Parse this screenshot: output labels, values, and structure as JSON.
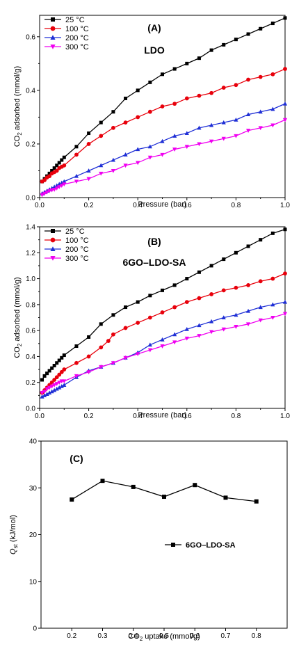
{
  "chart_data": [
    {
      "panel": "(A)",
      "title": "LDO",
      "type": "line",
      "xlabel": "Pressure (bar)",
      "ylabel": "CO2 adsorbed (mmol/g)",
      "xlim": [
        0,
        1.0
      ],
      "ylim": [
        0,
        0.68
      ],
      "xticks": [
        "0.0",
        "0.2",
        "0.4",
        "0.6",
        "0.8",
        "1.0"
      ],
      "yticks": [
        "0.0",
        "0.2",
        "0.4",
        "0.6"
      ],
      "xtick_values": [
        0,
        0.2,
        0.4,
        0.6,
        0.8,
        1.0
      ],
      "ytick_values": [
        0,
        0.2,
        0.4,
        0.6
      ],
      "legend": "top-left",
      "series": [
        {
          "name": "25 °C",
          "color": "#000000",
          "marker": "square",
          "x": [
            0.01,
            0.02,
            0.03,
            0.04,
            0.05,
            0.06,
            0.07,
            0.08,
            0.09,
            0.1,
            0.15,
            0.2,
            0.25,
            0.3,
            0.35,
            0.4,
            0.45,
            0.5,
            0.55,
            0.6,
            0.65,
            0.7,
            0.75,
            0.8,
            0.85,
            0.9,
            0.95,
            1.0
          ],
          "y": [
            0.06,
            0.07,
            0.08,
            0.09,
            0.1,
            0.11,
            0.12,
            0.13,
            0.14,
            0.15,
            0.19,
            0.24,
            0.28,
            0.32,
            0.37,
            0.4,
            0.43,
            0.46,
            0.48,
            0.5,
            0.52,
            0.55,
            0.57,
            0.59,
            0.61,
            0.63,
            0.65,
            0.67
          ]
        },
        {
          "name": "100 °C",
          "color": "#e8000b",
          "marker": "circle",
          "x": [
            0.01,
            0.02,
            0.03,
            0.04,
            0.05,
            0.06,
            0.07,
            0.08,
            0.09,
            0.1,
            0.15,
            0.2,
            0.25,
            0.3,
            0.35,
            0.4,
            0.45,
            0.5,
            0.55,
            0.6,
            0.65,
            0.7,
            0.75,
            0.8,
            0.85,
            0.9,
            0.95,
            1.0
          ],
          "y": [
            0.06,
            0.065,
            0.075,
            0.08,
            0.09,
            0.095,
            0.1,
            0.11,
            0.115,
            0.12,
            0.16,
            0.2,
            0.23,
            0.26,
            0.28,
            0.3,
            0.32,
            0.34,
            0.35,
            0.37,
            0.38,
            0.39,
            0.41,
            0.42,
            0.44,
            0.45,
            0.46,
            0.48
          ]
        },
        {
          "name": "200 °C",
          "color": "#1f2fd6",
          "marker": "triangle-up",
          "x": [
            0.01,
            0.02,
            0.03,
            0.04,
            0.05,
            0.06,
            0.07,
            0.08,
            0.09,
            0.1,
            0.15,
            0.2,
            0.25,
            0.3,
            0.35,
            0.4,
            0.45,
            0.5,
            0.55,
            0.6,
            0.65,
            0.7,
            0.75,
            0.8,
            0.85,
            0.9,
            0.95,
            1.0
          ],
          "y": [
            0.015,
            0.02,
            0.025,
            0.03,
            0.035,
            0.04,
            0.045,
            0.05,
            0.055,
            0.06,
            0.08,
            0.1,
            0.12,
            0.14,
            0.16,
            0.18,
            0.19,
            0.21,
            0.23,
            0.24,
            0.26,
            0.27,
            0.28,
            0.29,
            0.31,
            0.32,
            0.33,
            0.35
          ]
        },
        {
          "name": "300 °C",
          "color": "#f000f0",
          "marker": "triangle-down",
          "x": [
            0.01,
            0.02,
            0.03,
            0.04,
            0.05,
            0.06,
            0.07,
            0.08,
            0.09,
            0.1,
            0.15,
            0.2,
            0.25,
            0.3,
            0.35,
            0.4,
            0.45,
            0.5,
            0.55,
            0.6,
            0.65,
            0.7,
            0.75,
            0.8,
            0.85,
            0.9,
            0.95,
            1.0
          ],
          "y": [
            0.01,
            0.015,
            0.02,
            0.025,
            0.028,
            0.03,
            0.035,
            0.04,
            0.045,
            0.05,
            0.06,
            0.07,
            0.09,
            0.1,
            0.12,
            0.13,
            0.15,
            0.16,
            0.18,
            0.19,
            0.2,
            0.21,
            0.22,
            0.23,
            0.25,
            0.26,
            0.27,
            0.29
          ]
        }
      ]
    },
    {
      "panel": "(B)",
      "title": "6GO–LDO-SA",
      "type": "line",
      "xlabel": "Pressure (bar)",
      "ylabel": "CO2 adsorbed (mmol/g)",
      "xlim": [
        0,
        1.0
      ],
      "ylim": [
        0,
        1.4
      ],
      "xticks": [
        "0.0",
        "0.2",
        "0.4",
        "0.6",
        "0.8",
        "1.0"
      ],
      "yticks": [
        "0.0",
        "0.2",
        "0.4",
        "0.6",
        "0.8",
        "1.0",
        "1.2",
        "1.4"
      ],
      "xtick_values": [
        0,
        0.2,
        0.4,
        0.6,
        0.8,
        1.0
      ],
      "ytick_values": [
        0,
        0.2,
        0.4,
        0.6,
        0.8,
        1.0,
        1.2,
        1.4
      ],
      "legend": "top-left",
      "series": [
        {
          "name": "25 °C",
          "color": "#000000",
          "marker": "square",
          "x": [
            0.01,
            0.02,
            0.03,
            0.04,
            0.05,
            0.06,
            0.07,
            0.08,
            0.09,
            0.1,
            0.15,
            0.2,
            0.25,
            0.3,
            0.35,
            0.4,
            0.45,
            0.5,
            0.55,
            0.6,
            0.65,
            0.7,
            0.75,
            0.8,
            0.85,
            0.9,
            0.95,
            1.0
          ],
          "y": [
            0.22,
            0.25,
            0.27,
            0.29,
            0.31,
            0.33,
            0.35,
            0.37,
            0.39,
            0.41,
            0.48,
            0.55,
            0.65,
            0.72,
            0.78,
            0.82,
            0.87,
            0.91,
            0.95,
            1.0,
            1.05,
            1.1,
            1.15,
            1.2,
            1.25,
            1.3,
            1.35,
            1.38
          ]
        },
        {
          "name": "100 °C",
          "color": "#e8000b",
          "marker": "circle",
          "x": [
            0.01,
            0.02,
            0.03,
            0.04,
            0.05,
            0.06,
            0.07,
            0.08,
            0.09,
            0.1,
            0.15,
            0.2,
            0.25,
            0.28,
            0.3,
            0.35,
            0.4,
            0.45,
            0.5,
            0.55,
            0.6,
            0.65,
            0.7,
            0.75,
            0.8,
            0.85,
            0.9,
            0.95,
            1.0
          ],
          "y": [
            0.12,
            0.14,
            0.16,
            0.18,
            0.2,
            0.22,
            0.24,
            0.26,
            0.28,
            0.3,
            0.35,
            0.4,
            0.47,
            0.52,
            0.57,
            0.62,
            0.66,
            0.7,
            0.74,
            0.78,
            0.82,
            0.85,
            0.88,
            0.91,
            0.93,
            0.95,
            0.98,
            1.0,
            1.04
          ]
        },
        {
          "name": "200 °C",
          "color": "#1f2fd6",
          "marker": "triangle-up",
          "x": [
            0.01,
            0.02,
            0.03,
            0.04,
            0.05,
            0.06,
            0.07,
            0.08,
            0.09,
            0.1,
            0.15,
            0.2,
            0.25,
            0.3,
            0.35,
            0.4,
            0.45,
            0.5,
            0.55,
            0.6,
            0.65,
            0.7,
            0.75,
            0.8,
            0.85,
            0.9,
            0.95,
            1.0
          ],
          "y": [
            0.09,
            0.1,
            0.11,
            0.12,
            0.13,
            0.14,
            0.15,
            0.16,
            0.17,
            0.18,
            0.24,
            0.29,
            0.32,
            0.35,
            0.39,
            0.43,
            0.49,
            0.53,
            0.57,
            0.61,
            0.64,
            0.67,
            0.7,
            0.72,
            0.75,
            0.78,
            0.8,
            0.82
          ]
        },
        {
          "name": "300 °C",
          "color": "#f000f0",
          "marker": "triangle-down",
          "x": [
            0.01,
            0.02,
            0.03,
            0.04,
            0.05,
            0.06,
            0.07,
            0.08,
            0.09,
            0.1,
            0.15,
            0.2,
            0.25,
            0.3,
            0.35,
            0.4,
            0.45,
            0.5,
            0.55,
            0.6,
            0.65,
            0.7,
            0.75,
            0.8,
            0.85,
            0.9,
            0.95,
            1.0
          ],
          "y": [
            0.12,
            0.13,
            0.15,
            0.16,
            0.17,
            0.18,
            0.19,
            0.2,
            0.21,
            0.21,
            0.25,
            0.28,
            0.32,
            0.35,
            0.39,
            0.42,
            0.45,
            0.48,
            0.51,
            0.54,
            0.56,
            0.59,
            0.61,
            0.63,
            0.65,
            0.68,
            0.7,
            0.73
          ]
        }
      ]
    },
    {
      "panel": "(C)",
      "type": "line",
      "xlabel": "CO2 uptake (mmol/g)",
      "ylabel": "Qst (kJ/mol)",
      "xlim": [
        0.1,
        0.9
      ],
      "ylim": [
        0,
        40
      ],
      "xticks": [
        "0.2",
        "0.3",
        "0.4",
        "0.5",
        "0.6",
        "0.7",
        "0.8"
      ],
      "yticks": [
        "0",
        "10",
        "20",
        "30",
        "40"
      ],
      "xtick_values": [
        0.2,
        0.3,
        0.4,
        0.5,
        0.6,
        0.7,
        0.8
      ],
      "ytick_values": [
        0,
        10,
        20,
        30,
        40
      ],
      "legend": "center-right",
      "series": [
        {
          "name": "6GO–LDO-SA",
          "color": "#000000",
          "marker": "square",
          "x": [
            0.2,
            0.3,
            0.4,
            0.5,
            0.6,
            0.7,
            0.8
          ],
          "y": [
            27.5,
            31.5,
            30.2,
            28.1,
            30.6,
            27.9,
            27.1
          ]
        }
      ]
    }
  ]
}
